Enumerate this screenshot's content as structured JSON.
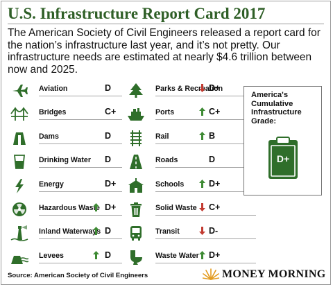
{
  "header": {
    "title": "U.S. Infrastructure Report Card 2017",
    "intro": "The American Society of Civil Engineers released a report card for the nation’s infrastructure last year, and it’s not pretty. Our infrastructure needs are estimated at nearly $4.6 trillion between now and 2025."
  },
  "left_categories": [
    {
      "label": "Aviation",
      "grade": "D",
      "trend": "",
      "icon": "airplane-icon"
    },
    {
      "label": "Bridges",
      "grade": "C+",
      "trend": "",
      "icon": "bridge-icon"
    },
    {
      "label": "Dams",
      "grade": "D",
      "trend": "",
      "icon": "dam-icon"
    },
    {
      "label": "Drinking Water",
      "grade": "D",
      "trend": "",
      "icon": "water-glass-icon"
    },
    {
      "label": "Energy",
      "grade": "D+",
      "trend": "",
      "icon": "lightning-icon"
    },
    {
      "label": "Hazardous Waste",
      "grade": "D+",
      "trend": "up",
      "icon": "radiation-icon"
    },
    {
      "label": "Inland Waterways",
      "grade": "D",
      "trend": "up",
      "icon": "lighthouse-icon"
    },
    {
      "label": "Levees",
      "grade": "D",
      "trend": "up",
      "icon": "levee-icon"
    }
  ],
  "right_categories": [
    {
      "label": "Parks & Recreation",
      "grade": "D+",
      "trend": "down",
      "icon": "tree-icon"
    },
    {
      "label": "Ports",
      "grade": "C+",
      "trend": "up",
      "icon": "ship-icon"
    },
    {
      "label": "Rail",
      "grade": "B",
      "trend": "up",
      "icon": "rail-icon"
    },
    {
      "label": "Roads",
      "grade": "D",
      "trend": "",
      "icon": "road-icon"
    },
    {
      "label": "Schools",
      "grade": "D+",
      "trend": "up",
      "icon": "school-icon"
    },
    {
      "label": "Solid Waste",
      "grade": "C+",
      "trend": "down",
      "icon": "trash-can-icon"
    },
    {
      "label": "Transit",
      "grade": "D-",
      "trend": "down",
      "icon": "bus-icon"
    },
    {
      "label": "Waste Water",
      "grade": "D+",
      "trend": "up",
      "icon": "toilet-icon"
    }
  ],
  "cumulative": {
    "title": "America's Cumulative Infrastructure Grade:",
    "grade": "D+"
  },
  "footer": {
    "source": "Source: American Society of Civil Engineers",
    "logo_text": "MONEY MORNING"
  },
  "colors": {
    "title_green": "#2f5f27",
    "icon_green": "#2f6e2a",
    "up_arrow": "#3d8a33",
    "down_arrow": "#c23a30",
    "clipboard_green": "#2f6e2a",
    "logo_orange": "#e39a1d"
  }
}
